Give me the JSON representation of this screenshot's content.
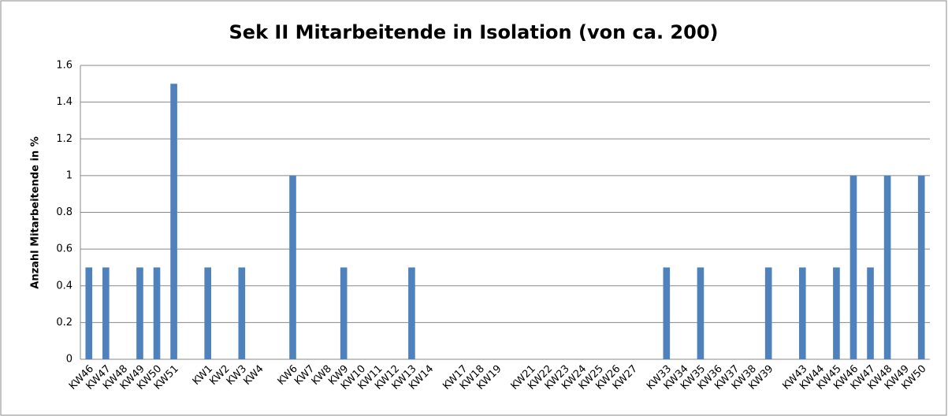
{
  "chart_data": {
    "type": "bar",
    "title": "Sek II Mitarbeitende in Isolation (von ca. 200)",
    "y_label": "Anzahl Mitarbeitende in %",
    "categories": [
      "KW46",
      "KW47",
      "KW48",
      "KW49",
      "KW50",
      "KW51",
      null,
      "KW1",
      "KW2",
      "KW3",
      "KW4",
      null,
      "KW6",
      "KW7",
      "KW8",
      "KW9",
      "KW10",
      "KW11",
      "KW12",
      "KW13",
      "KW14",
      null,
      "KW17",
      "KW18",
      "KW19",
      null,
      "KW21",
      "KW22",
      "KW23",
      "KW24",
      "KW25",
      "KW26",
      "KW27",
      null,
      "KW33",
      "KW34",
      "KW35",
      "KW36",
      "KW37",
      "KW38",
      "KW39",
      null,
      "KW43",
      "KW44",
      "KW45",
      "KW46",
      "KW47",
      "KW48",
      "KW49",
      "KW50"
    ],
    "values": [
      0.5,
      0.5,
      0,
      0.5,
      0.5,
      1.5,
      null,
      0.5,
      0,
      0.5,
      0,
      null,
      1,
      0,
      0,
      0.5,
      0,
      0,
      0,
      0.5,
      0,
      null,
      0,
      0,
      0,
      null,
      0,
      0,
      0,
      0,
      0,
      0,
      0,
      null,
      0.5,
      0,
      0.5,
      0,
      0,
      0,
      0.5,
      null,
      0.5,
      0,
      0.5,
      1,
      0.5,
      1,
      0,
      1
    ],
    "color": "#4f81bd",
    "ylim": [
      0,
      1.6
    ],
    "yticks": [
      0,
      0.2,
      0.4,
      0.6,
      0.8,
      1,
      1.2,
      1.4,
      1.6
    ],
    "grid": true
  }
}
